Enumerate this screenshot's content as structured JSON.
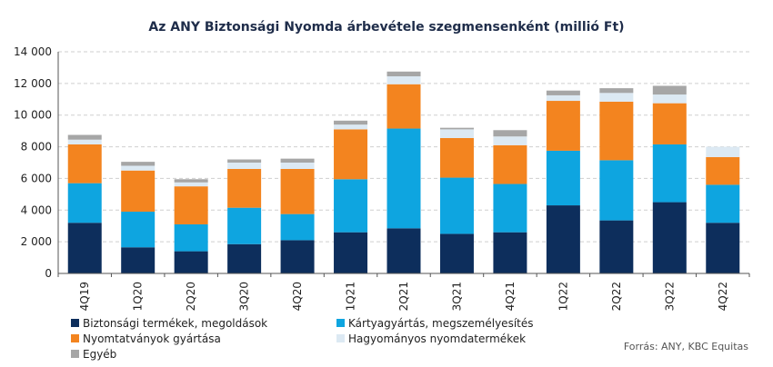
{
  "chart_data": {
    "type": "bar",
    "stacked": true,
    "title": "Az ANY Biztonsági Nyomda árbevétele szegmensenként (millió Ft)",
    "source": "Forrás: ANY, KBC Equitas",
    "categories": [
      "4Q19",
      "1Q20",
      "2Q20",
      "3Q20",
      "4Q20",
      "1Q21",
      "2Q21",
      "3Q21",
      "4Q21",
      "1Q22",
      "2Q22",
      "3Q22",
      "4Q22"
    ],
    "y_ticks": [
      "0",
      "2 000",
      "4 000",
      "6 000",
      "8 000",
      "10 000",
      "12 000",
      "14 000"
    ],
    "ylim": [
      0,
      14000
    ],
    "grid": true,
    "legend_placement": "bottom",
    "series": [
      {
        "name": "Biztonsági termékek, megoldások",
        "color": "#0d2e5c",
        "values": [
          3200,
          1650,
          1400,
          1850,
          2100,
          2600,
          2850,
          2500,
          2600,
          4300,
          3350,
          4500,
          3200
        ]
      },
      {
        "name": "Kártyagyártás, megszemélyesítés",
        "color": "#0ea5e0",
        "values": [
          2500,
          2250,
          1700,
          2300,
          1650,
          3350,
          6300,
          3550,
          3050,
          3450,
          3800,
          3650,
          2400
        ]
      },
      {
        "name": "Nyomtatványok gyártása",
        "color": "#f3841f",
        "values": [
          2450,
          2600,
          2400,
          2450,
          2850,
          3150,
          2800,
          2500,
          2450,
          3150,
          3700,
          2600,
          1750
        ]
      },
      {
        "name": "Hagyományos nyomdatermékek",
        "color": "#dce9f3",
        "values": [
          300,
          300,
          250,
          400,
          400,
          300,
          500,
          550,
          550,
          350,
          550,
          550,
          650
        ]
      },
      {
        "name": "Egyéb",
        "color": "#a6a6a6",
        "values": [
          300,
          250,
          200,
          200,
          250,
          250,
          300,
          100,
          400,
          300,
          300,
          550,
          0
        ]
      }
    ]
  }
}
